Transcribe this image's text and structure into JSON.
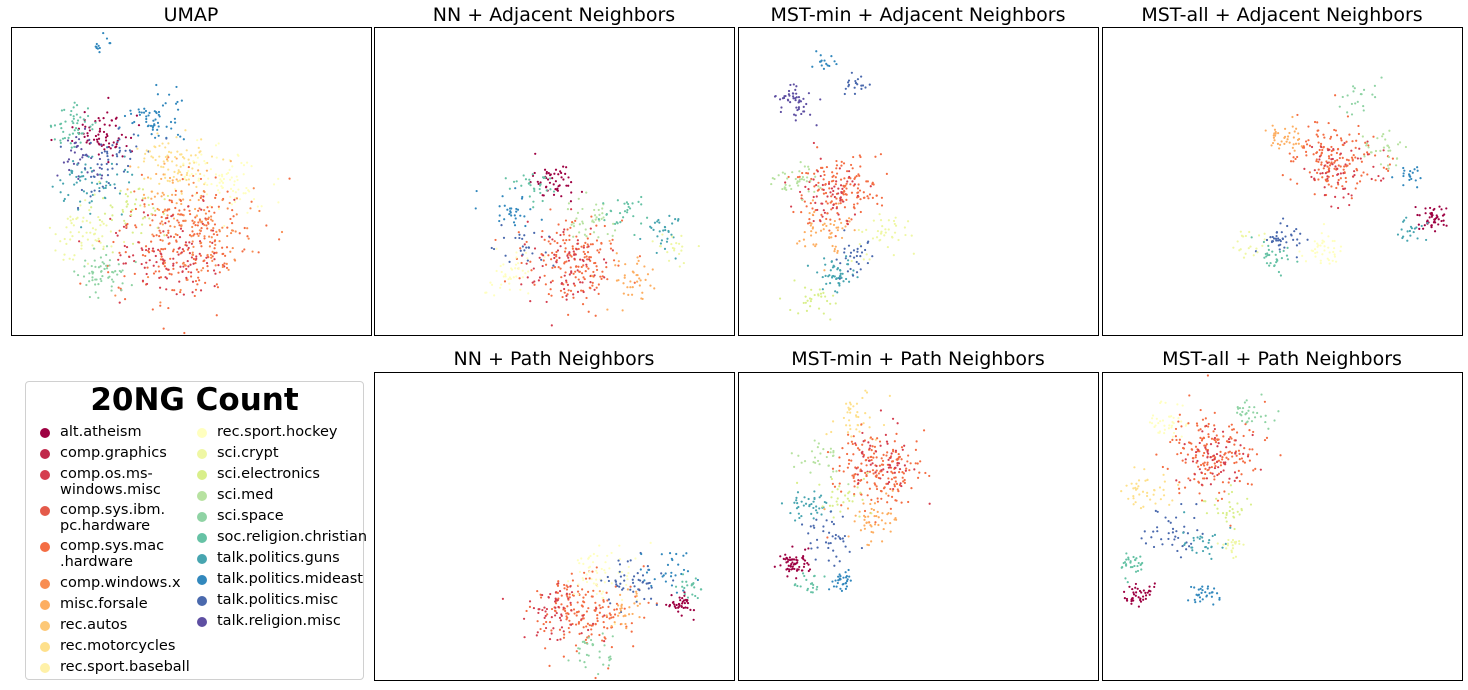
{
  "palette": {
    "alt.atheism": "#9e0142",
    "comp.graphics": "#c0284a",
    "comp.os.ms-windows.misc": "#d53e4f",
    "comp.sys.ibm.pc.hardware": "#e45a4a",
    "comp.sys.mac.hardware": "#f46d43",
    "comp.windows.x": "#f88d52",
    "misc.forsale": "#fdae61",
    "rec.autos": "#fdc877",
    "rec.motorcycles": "#fee08b",
    "rec.sport.baseball": "#fff1a8",
    "rec.sport.hockey": "#ffffbf",
    "sci.crypt": "#eff7a4",
    "sci.electronics": "#d9ef8b",
    "sci.med": "#b7e2a1",
    "sci.space": "#8fd3a4",
    "soc.religion.christian": "#66c2a5",
    "talk.politics.guns": "#47a5b0",
    "talk.politics.mideast": "#3288bd",
    "talk.politics.misc": "#4a69ad",
    "talk.religion.misc": "#5e4fa2"
  },
  "legend": {
    "title": "20NG Count",
    "items": [
      {
        "label": "alt.atheism",
        "color": "#9e0142"
      },
      {
        "label": "comp.graphics",
        "color": "#c0284a"
      },
      {
        "label": "comp.os.ms-\nwindows.misc",
        "color": "#d53e4f"
      },
      {
        "label": "comp.sys.ibm.\npc.hardware",
        "color": "#e45a4a"
      },
      {
        "label": "comp.sys.mac\n.hardware",
        "color": "#f46d43"
      },
      {
        "label": "comp.windows.x",
        "color": "#f88d52"
      },
      {
        "label": "misc.forsale",
        "color": "#fdae61"
      },
      {
        "label": "rec.autos",
        "color": "#fdc877"
      },
      {
        "label": "rec.motorcycles",
        "color": "#fee08b"
      },
      {
        "label": "rec.sport.baseball",
        "color": "#fff1a8"
      },
      {
        "label": "rec.sport.hockey",
        "color": "#ffffbf"
      },
      {
        "label": "sci.crypt",
        "color": "#eff7a4"
      },
      {
        "label": "sci.electronics",
        "color": "#d9ef8b"
      },
      {
        "label": "sci.med",
        "color": "#b7e2a1"
      },
      {
        "label": "sci.space",
        "color": "#8fd3a4"
      },
      {
        "label": "soc.religion.christian",
        "color": "#66c2a5"
      },
      {
        "label": "talk.politics.guns",
        "color": "#47a5b0"
      },
      {
        "label": "talk.politics.mideast",
        "color": "#3288bd"
      },
      {
        "label": "talk.politics.misc",
        "color": "#4a69ad"
      },
      {
        "label": "talk.religion.misc",
        "color": "#5e4fa2"
      }
    ]
  },
  "chart_data": [
    {
      "type": "scatter",
      "title": "UMAP",
      "axes": "hidden",
      "clusters": [
        {
          "category": "talk.politics.mideast",
          "x": 0.4,
          "y": 0.3,
          "n": 60,
          "s": 0.04
        },
        {
          "category": "talk.politics.mideast",
          "x": 0.24,
          "y": 0.06,
          "n": 12,
          "s": 0.02
        },
        {
          "category": "alt.atheism",
          "x": 0.25,
          "y": 0.35,
          "n": 70,
          "s": 0.04
        },
        {
          "category": "soc.religion.christian",
          "x": 0.17,
          "y": 0.32,
          "n": 50,
          "s": 0.03
        },
        {
          "category": "talk.religion.misc",
          "x": 0.2,
          "y": 0.42,
          "n": 40,
          "s": 0.04
        },
        {
          "category": "talk.politics.guns",
          "x": 0.22,
          "y": 0.5,
          "n": 60,
          "s": 0.05
        },
        {
          "category": "talk.politics.misc",
          "x": 0.28,
          "y": 0.45,
          "n": 50,
          "s": 0.05
        },
        {
          "category": "rec.motorcycles",
          "x": 0.45,
          "y": 0.43,
          "n": 80,
          "s": 0.05
        },
        {
          "category": "rec.sport.hockey",
          "x": 0.58,
          "y": 0.5,
          "n": 90,
          "s": 0.06
        },
        {
          "category": "comp.sys.mac.hardware",
          "x": 0.48,
          "y": 0.7,
          "n": 220,
          "s": 0.1
        },
        {
          "category": "comp.os.ms-windows.misc",
          "x": 0.44,
          "y": 0.72,
          "n": 120,
          "s": 0.08
        },
        {
          "category": "comp.windows.x",
          "x": 0.54,
          "y": 0.66,
          "n": 100,
          "s": 0.08
        },
        {
          "category": "misc.forsale",
          "x": 0.44,
          "y": 0.52,
          "n": 40,
          "s": 0.05
        },
        {
          "category": "sci.electronics",
          "x": 0.34,
          "y": 0.6,
          "n": 50,
          "s": 0.05
        },
        {
          "category": "sci.crypt",
          "x": 0.19,
          "y": 0.68,
          "n": 60,
          "s": 0.05
        },
        {
          "category": "sci.space",
          "x": 0.26,
          "y": 0.8,
          "n": 60,
          "s": 0.04
        }
      ]
    },
    {
      "type": "scatter",
      "title": "NN + Adjacent Neighbors",
      "axes": "hidden",
      "clusters": [
        {
          "category": "alt.atheism",
          "x": 0.5,
          "y": 0.5,
          "n": 50,
          "s": 0.03
        },
        {
          "category": "soc.religion.christian",
          "x": 0.44,
          "y": 0.52,
          "n": 30,
          "s": 0.03
        },
        {
          "category": "talk.politics.mideast",
          "x": 0.38,
          "y": 0.6,
          "n": 30,
          "s": 0.03
        },
        {
          "category": "sci.med",
          "x": 0.6,
          "y": 0.62,
          "n": 40,
          "s": 0.04
        },
        {
          "category": "soc.religion.christian",
          "x": 0.69,
          "y": 0.6,
          "n": 30,
          "s": 0.03
        },
        {
          "category": "talk.politics.guns",
          "x": 0.8,
          "y": 0.67,
          "n": 30,
          "s": 0.03
        },
        {
          "category": "sci.crypt",
          "x": 0.84,
          "y": 0.72,
          "n": 20,
          "s": 0.03
        },
        {
          "category": "comp.sys.mac.hardware",
          "x": 0.55,
          "y": 0.76,
          "n": 160,
          "s": 0.07
        },
        {
          "category": "comp.os.ms-windows.misc",
          "x": 0.52,
          "y": 0.78,
          "n": 80,
          "s": 0.06
        },
        {
          "category": "rec.sport.hockey",
          "x": 0.37,
          "y": 0.8,
          "n": 40,
          "s": 0.04
        },
        {
          "category": "misc.forsale",
          "x": 0.7,
          "y": 0.82,
          "n": 40,
          "s": 0.04
        },
        {
          "category": "talk.politics.misc",
          "x": 0.41,
          "y": 0.7,
          "n": 25,
          "s": 0.04
        }
      ]
    },
    {
      "type": "scatter",
      "title": "MST-min + Adjacent Neighbors",
      "axes": "hidden",
      "clusters": [
        {
          "category": "talk.religion.misc",
          "x": 0.16,
          "y": 0.24,
          "n": 50,
          "s": 0.03
        },
        {
          "category": "talk.politics.mideast",
          "x": 0.24,
          "y": 0.12,
          "n": 15,
          "s": 0.02
        },
        {
          "category": "talk.politics.misc",
          "x": 0.32,
          "y": 0.18,
          "n": 20,
          "s": 0.02
        },
        {
          "category": "comp.sys.mac.hardware",
          "x": 0.28,
          "y": 0.52,
          "n": 150,
          "s": 0.06
        },
        {
          "category": "comp.os.ms-windows.misc",
          "x": 0.26,
          "y": 0.54,
          "n": 60,
          "s": 0.05
        },
        {
          "category": "sci.med",
          "x": 0.16,
          "y": 0.5,
          "n": 40,
          "s": 0.03
        },
        {
          "category": "misc.forsale",
          "x": 0.24,
          "y": 0.66,
          "n": 50,
          "s": 0.04
        },
        {
          "category": "sci.crypt",
          "x": 0.4,
          "y": 0.68,
          "n": 40,
          "s": 0.04
        },
        {
          "category": "talk.politics.guns",
          "x": 0.27,
          "y": 0.8,
          "n": 50,
          "s": 0.03
        },
        {
          "category": "sci.electronics",
          "x": 0.2,
          "y": 0.88,
          "n": 30,
          "s": 0.03
        },
        {
          "category": "talk.politics.misc",
          "x": 0.32,
          "y": 0.74,
          "n": 30,
          "s": 0.03
        }
      ]
    },
    {
      "type": "scatter",
      "title": "MST-all + Adjacent Neighbors",
      "axes": "hidden",
      "clusters": [
        {
          "category": "comp.sys.mac.hardware",
          "x": 0.64,
          "y": 0.42,
          "n": 160,
          "s": 0.06
        },
        {
          "category": "comp.os.ms-windows.misc",
          "x": 0.66,
          "y": 0.46,
          "n": 60,
          "s": 0.05
        },
        {
          "category": "misc.forsale",
          "x": 0.51,
          "y": 0.36,
          "n": 40,
          "s": 0.03
        },
        {
          "category": "sci.med",
          "x": 0.78,
          "y": 0.4,
          "n": 30,
          "s": 0.03
        },
        {
          "category": "sci.space",
          "x": 0.72,
          "y": 0.22,
          "n": 20,
          "s": 0.03
        },
        {
          "category": "talk.politics.misc",
          "x": 0.5,
          "y": 0.68,
          "n": 40,
          "s": 0.03
        },
        {
          "category": "soc.religion.christian",
          "x": 0.48,
          "y": 0.74,
          "n": 30,
          "s": 0.03
        },
        {
          "category": "sci.crypt",
          "x": 0.41,
          "y": 0.7,
          "n": 20,
          "s": 0.02
        },
        {
          "category": "rec.sport.hockey",
          "x": 0.62,
          "y": 0.72,
          "n": 40,
          "s": 0.03
        },
        {
          "category": "alt.atheism",
          "x": 0.91,
          "y": 0.62,
          "n": 50,
          "s": 0.02
        },
        {
          "category": "talk.politics.guns",
          "x": 0.86,
          "y": 0.66,
          "n": 20,
          "s": 0.02
        },
        {
          "category": "talk.politics.mideast",
          "x": 0.85,
          "y": 0.48,
          "n": 20,
          "s": 0.02
        }
      ]
    },
    {
      "type": "scatter",
      "title": "NN + Path Neighbors",
      "axes": "hidden",
      "clusters": [
        {
          "category": "comp.sys.mac.hardware",
          "x": 0.58,
          "y": 0.78,
          "n": 180,
          "s": 0.07
        },
        {
          "category": "comp.os.ms-windows.misc",
          "x": 0.5,
          "y": 0.78,
          "n": 60,
          "s": 0.05
        },
        {
          "category": "rec.sport.hockey",
          "x": 0.62,
          "y": 0.66,
          "n": 60,
          "s": 0.05
        },
        {
          "category": "talk.politics.misc",
          "x": 0.72,
          "y": 0.68,
          "n": 50,
          "s": 0.04
        },
        {
          "category": "talk.politics.mideast",
          "x": 0.82,
          "y": 0.64,
          "n": 30,
          "s": 0.04
        },
        {
          "category": "alt.atheism",
          "x": 0.85,
          "y": 0.76,
          "n": 40,
          "s": 0.02
        },
        {
          "category": "soc.religion.christian",
          "x": 0.88,
          "y": 0.7,
          "n": 20,
          "s": 0.02
        },
        {
          "category": "sci.space",
          "x": 0.6,
          "y": 0.9,
          "n": 30,
          "s": 0.03
        },
        {
          "category": "misc.forsale",
          "x": 0.7,
          "y": 0.78,
          "n": 30,
          "s": 0.03
        }
      ]
    },
    {
      "type": "scatter",
      "title": "MST-min + Path Neighbors",
      "axes": "hidden",
      "clusters": [
        {
          "category": "rec.motorcycles",
          "x": 0.32,
          "y": 0.15,
          "n": 40,
          "s": 0.04
        },
        {
          "category": "comp.sys.mac.hardware",
          "x": 0.38,
          "y": 0.32,
          "n": 180,
          "s": 0.06
        },
        {
          "category": "comp.os.ms-windows.misc",
          "x": 0.4,
          "y": 0.3,
          "n": 60,
          "s": 0.05
        },
        {
          "category": "sci.med",
          "x": 0.22,
          "y": 0.28,
          "n": 30,
          "s": 0.03
        },
        {
          "category": "talk.politics.guns",
          "x": 0.2,
          "y": 0.44,
          "n": 40,
          "s": 0.03
        },
        {
          "category": "talk.politics.misc",
          "x": 0.24,
          "y": 0.54,
          "n": 40,
          "s": 0.04
        },
        {
          "category": "misc.forsale",
          "x": 0.38,
          "y": 0.48,
          "n": 50,
          "s": 0.04
        },
        {
          "category": "sci.electronics",
          "x": 0.3,
          "y": 0.42,
          "n": 30,
          "s": 0.04
        },
        {
          "category": "alt.atheism",
          "x": 0.15,
          "y": 0.62,
          "n": 60,
          "s": 0.02
        },
        {
          "category": "soc.religion.christian",
          "x": 0.2,
          "y": 0.68,
          "n": 20,
          "s": 0.02
        },
        {
          "category": "talk.politics.mideast",
          "x": 0.28,
          "y": 0.68,
          "n": 30,
          "s": 0.02
        }
      ]
    },
    {
      "type": "scatter",
      "title": "MST-all + Path Neighbors",
      "axes": "hidden",
      "clusters": [
        {
          "category": "rec.sport.hockey",
          "x": 0.18,
          "y": 0.16,
          "n": 40,
          "s": 0.03
        },
        {
          "category": "sci.space",
          "x": 0.42,
          "y": 0.14,
          "n": 30,
          "s": 0.03
        },
        {
          "category": "comp.sys.mac.hardware",
          "x": 0.3,
          "y": 0.26,
          "n": 180,
          "s": 0.06
        },
        {
          "category": "comp.os.ms-windows.misc",
          "x": 0.32,
          "y": 0.28,
          "n": 60,
          "s": 0.05
        },
        {
          "category": "rec.motorcycles",
          "x": 0.12,
          "y": 0.38,
          "n": 40,
          "s": 0.03
        },
        {
          "category": "sci.electronics",
          "x": 0.35,
          "y": 0.45,
          "n": 30,
          "s": 0.03
        },
        {
          "category": "talk.politics.misc",
          "x": 0.2,
          "y": 0.52,
          "n": 40,
          "s": 0.04
        },
        {
          "category": "talk.politics.guns",
          "x": 0.27,
          "y": 0.55,
          "n": 30,
          "s": 0.03
        },
        {
          "category": "sci.crypt",
          "x": 0.36,
          "y": 0.57,
          "n": 20,
          "s": 0.02
        },
        {
          "category": "soc.religion.christian",
          "x": 0.08,
          "y": 0.62,
          "n": 30,
          "s": 0.02
        },
        {
          "category": "alt.atheism",
          "x": 0.1,
          "y": 0.72,
          "n": 40,
          "s": 0.02
        },
        {
          "category": "talk.politics.mideast",
          "x": 0.28,
          "y": 0.72,
          "n": 30,
          "s": 0.02
        }
      ]
    }
  ]
}
